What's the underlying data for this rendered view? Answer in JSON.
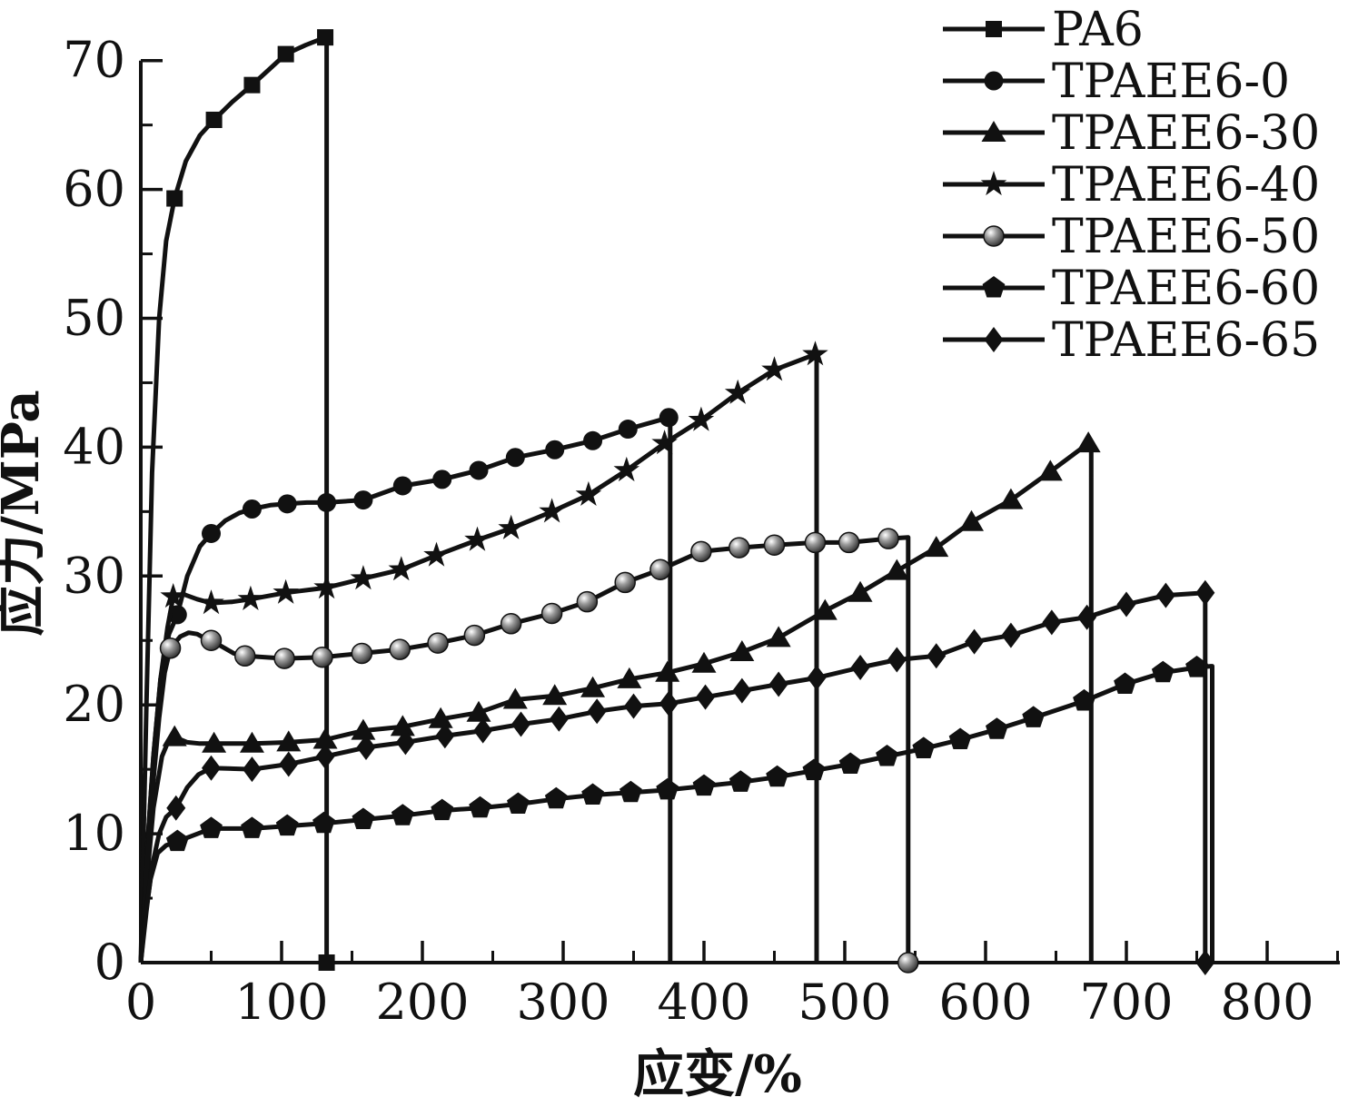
{
  "figure": {
    "background": "#ffffff",
    "ink_color": "#111111"
  },
  "chart_data": {
    "type": "line",
    "title": "",
    "xlabel": "应变/%",
    "ylabel": "应力/MPa",
    "xlim": [
      0,
      850
    ],
    "ylim": [
      0,
      70
    ],
    "x_major_ticks": [
      0,
      100,
      200,
      300,
      400,
      500,
      600,
      700,
      800
    ],
    "x_minor_step": 50,
    "y_major_ticks": [
      0,
      10,
      20,
      30,
      40,
      50,
      60,
      70
    ],
    "y_minor_step": 5,
    "grid": "off",
    "legend_position": "top-right",
    "legend": [
      "PA6",
      "TPAEE6-0",
      "TPAEE6-30",
      "TPAEE6-40",
      "TPAEE6-50",
      "TPAEE6-60",
      "TPAEE6-65"
    ],
    "series": [
      {
        "name": "PA6",
        "marker": "square",
        "break_strain": 132,
        "base_marker": true,
        "points": [
          [
            0,
            0,
            0
          ],
          [
            4,
            20,
            0
          ],
          [
            8,
            38,
            0
          ],
          [
            13,
            50,
            0
          ],
          [
            18,
            56,
            0
          ],
          [
            24,
            59.3,
            1
          ],
          [
            32,
            62.2,
            0
          ],
          [
            42,
            64.2,
            0
          ],
          [
            52,
            65.4,
            1
          ],
          [
            65,
            66.8,
            0
          ],
          [
            79,
            68.1,
            1
          ],
          [
            91,
            69.3,
            0
          ],
          [
            103,
            70.5,
            1
          ],
          [
            117,
            71.2,
            0
          ],
          [
            131,
            71.8,
            1
          ]
        ]
      },
      {
        "name": "TPAEE6-0",
        "marker": "circle",
        "break_strain": 376,
        "base_marker": false,
        "points": [
          [
            0,
            0,
            0
          ],
          [
            4,
            8,
            0
          ],
          [
            9,
            16,
            0
          ],
          [
            14,
            22,
            0
          ],
          [
            20,
            25.5,
            0
          ],
          [
            26,
            27,
            1
          ],
          [
            33,
            30,
            0
          ],
          [
            42,
            32.3,
            0
          ],
          [
            50,
            33.3,
            1
          ],
          [
            60,
            34.3,
            0
          ],
          [
            70,
            34.9,
            0
          ],
          [
            79,
            35.2,
            1
          ],
          [
            92,
            35.5,
            0
          ],
          [
            104,
            35.6,
            1
          ],
          [
            118,
            35.7,
            0
          ],
          [
            132,
            35.7,
            1
          ],
          [
            158,
            35.9,
            1
          ],
          [
            186,
            37,
            1
          ],
          [
            214,
            37.5,
            1
          ],
          [
            240,
            38.2,
            1
          ],
          [
            266,
            39.2,
            1
          ],
          [
            294,
            39.8,
            1
          ],
          [
            321,
            40.5,
            1
          ],
          [
            346,
            41.4,
            1
          ],
          [
            375,
            42.3,
            1
          ]
        ]
      },
      {
        "name": "TPAEE6-30",
        "marker": "triangle",
        "break_strain": 675,
        "base_marker": false,
        "points": [
          [
            0,
            0,
            0
          ],
          [
            4,
            6,
            0
          ],
          [
            9,
            12,
            0
          ],
          [
            15,
            16,
            0
          ],
          [
            20,
            17.3,
            0
          ],
          [
            24,
            17.5,
            1
          ],
          [
            33,
            17.1,
            0
          ],
          [
            42,
            17,
            0
          ],
          [
            52,
            17,
            1
          ],
          [
            65,
            17,
            0
          ],
          [
            79,
            17,
            1
          ],
          [
            92,
            17.05,
            0
          ],
          [
            105,
            17.1,
            1
          ],
          [
            131,
            17.3,
            1
          ],
          [
            158,
            18,
            1
          ],
          [
            186,
            18.3,
            1
          ],
          [
            213,
            18.9,
            1
          ],
          [
            240,
            19.4,
            1
          ],
          [
            266,
            20.4,
            1
          ],
          [
            294,
            20.7,
            1
          ],
          [
            321,
            21.3,
            1
          ],
          [
            347,
            22,
            1
          ],
          [
            374,
            22.5,
            1
          ],
          [
            400,
            23.2,
            1
          ],
          [
            427,
            24.1,
            1
          ],
          [
            453,
            25.2,
            1
          ],
          [
            486,
            27.3,
            1
          ],
          [
            511,
            28.7,
            1
          ],
          [
            537,
            30.4,
            1
          ],
          [
            565,
            32.2,
            1
          ],
          [
            590,
            34.2,
            1
          ],
          [
            618,
            35.9,
            1
          ],
          [
            646,
            38.1,
            1
          ],
          [
            673,
            40.3,
            1
          ]
        ]
      },
      {
        "name": "TPAEE6-40",
        "marker": "star",
        "break_strain": 480,
        "base_marker": false,
        "points": [
          [
            0,
            0,
            0
          ],
          [
            4,
            8,
            0
          ],
          [
            9,
            16,
            0
          ],
          [
            14,
            22,
            0
          ],
          [
            19,
            26,
            0
          ],
          [
            23,
            28.4,
            1
          ],
          [
            30,
            28.6,
            0
          ],
          [
            40,
            28.2,
            0
          ],
          [
            50,
            27.9,
            1
          ],
          [
            65,
            28,
            0
          ],
          [
            78,
            28.2,
            1
          ],
          [
            103,
            28.7,
            1
          ],
          [
            132,
            29.1,
            1
          ],
          [
            158,
            29.8,
            1
          ],
          [
            185,
            30.5,
            1
          ],
          [
            210,
            31.6,
            1
          ],
          [
            239,
            32.8,
            1
          ],
          [
            263,
            33.7,
            1
          ],
          [
            292,
            35,
            1
          ],
          [
            318,
            36.3,
            1
          ],
          [
            345,
            38.2,
            1
          ],
          [
            372,
            40.3,
            1
          ],
          [
            398,
            42.1,
            1
          ],
          [
            424,
            44.2,
            1
          ],
          [
            450,
            46,
            1
          ],
          [
            479,
            47.2,
            1
          ]
        ]
      },
      {
        "name": "TPAEE6-50",
        "marker": "sphere",
        "break_strain": 545,
        "base_marker": true,
        "points": [
          [
            0,
            0,
            0
          ],
          [
            4,
            7,
            0
          ],
          [
            8,
            13,
            0
          ],
          [
            13,
            19,
            0
          ],
          [
            17,
            22.5,
            0
          ],
          [
            21,
            24.4,
            1
          ],
          [
            28,
            25.3,
            0
          ],
          [
            34,
            25.6,
            0
          ],
          [
            40,
            25.5,
            0
          ],
          [
            45,
            25.2,
            0
          ],
          [
            50,
            25,
            1
          ],
          [
            58,
            24.5,
            0
          ],
          [
            66,
            24,
            0
          ],
          [
            74,
            23.8,
            1
          ],
          [
            102,
            23.6,
            1
          ],
          [
            129,
            23.7,
            1
          ],
          [
            157,
            24,
            1
          ],
          [
            184,
            24.3,
            1
          ],
          [
            211,
            24.8,
            1
          ],
          [
            237,
            25.4,
            1
          ],
          [
            263,
            26.3,
            1
          ],
          [
            292,
            27.1,
            1
          ],
          [
            317,
            28,
            1
          ],
          [
            344,
            29.5,
            1
          ],
          [
            369,
            30.5,
            1
          ],
          [
            398,
            31.9,
            1
          ],
          [
            425,
            32.2,
            1
          ],
          [
            450,
            32.4,
            1
          ],
          [
            479,
            32.6,
            1
          ],
          [
            503,
            32.6,
            1
          ],
          [
            531,
            32.9,
            1
          ],
          [
            545,
            33,
            0
          ]
        ]
      },
      {
        "name": "TPAEE6-60",
        "marker": "pentagon",
        "break_strain": 761,
        "base_marker": false,
        "points": [
          [
            0,
            0,
            0
          ],
          [
            3,
            3.5,
            0
          ],
          [
            7,
            6.5,
            0
          ],
          [
            12,
            8.5,
            0
          ],
          [
            18,
            9.1,
            0
          ],
          [
            26,
            9.4,
            1
          ],
          [
            50,
            10.4,
            1
          ],
          [
            79,
            10.4,
            1
          ],
          [
            104,
            10.6,
            1
          ],
          [
            130,
            10.8,
            1
          ],
          [
            158,
            11.1,
            1
          ],
          [
            186,
            11.4,
            1
          ],
          [
            214,
            11.8,
            1
          ],
          [
            241,
            12,
            1
          ],
          [
            268,
            12.3,
            1
          ],
          [
            295,
            12.7,
            1
          ],
          [
            321,
            13,
            1
          ],
          [
            348,
            13.2,
            1
          ],
          [
            374,
            13.4,
            1
          ],
          [
            400,
            13.7,
            1
          ],
          [
            426,
            14,
            1
          ],
          [
            452,
            14.4,
            1
          ],
          [
            478,
            14.9,
            1
          ],
          [
            504,
            15.4,
            1
          ],
          [
            530,
            16,
            1
          ],
          [
            556,
            16.6,
            1
          ],
          [
            582,
            17.3,
            1
          ],
          [
            608,
            18.1,
            1
          ],
          [
            634,
            19,
            1
          ],
          [
            670,
            20.3,
            1
          ],
          [
            699,
            21.6,
            1
          ],
          [
            726,
            22.5,
            1
          ],
          [
            750,
            22.9,
            1
          ],
          [
            760,
            23,
            0
          ]
        ]
      },
      {
        "name": "TPAEE6-65",
        "marker": "diamond",
        "break_strain": 756,
        "base_marker": true,
        "points": [
          [
            0,
            0,
            0
          ],
          [
            4,
            4,
            0
          ],
          [
            8,
            7.5,
            0
          ],
          [
            13,
            10,
            0
          ],
          [
            18,
            11.3,
            0
          ],
          [
            25,
            12,
            1
          ],
          [
            33,
            13.6,
            0
          ],
          [
            41,
            14.6,
            0
          ],
          [
            50,
            15.1,
            1
          ],
          [
            79,
            15,
            1
          ],
          [
            105,
            15.4,
            1
          ],
          [
            131,
            16,
            1
          ],
          [
            160,
            16.7,
            1
          ],
          [
            188,
            17.1,
            1
          ],
          [
            216,
            17.6,
            1
          ],
          [
            243,
            18,
            1
          ],
          [
            270,
            18.5,
            1
          ],
          [
            297,
            18.9,
            1
          ],
          [
            324,
            19.5,
            1
          ],
          [
            350,
            19.9,
            1
          ],
          [
            375,
            20.1,
            1
          ],
          [
            401,
            20.6,
            1
          ],
          [
            427,
            21.1,
            1
          ],
          [
            453,
            21.6,
            1
          ],
          [
            480,
            22.1,
            1
          ],
          [
            511,
            22.9,
            1
          ],
          [
            537,
            23.5,
            1
          ],
          [
            565,
            23.8,
            1
          ],
          [
            592,
            24.9,
            1
          ],
          [
            618,
            25.4,
            1
          ],
          [
            647,
            26.4,
            1
          ],
          [
            672,
            26.8,
            1
          ],
          [
            700,
            27.8,
            1
          ],
          [
            728,
            28.5,
            1
          ],
          [
            756,
            28.7,
            1
          ]
        ]
      }
    ]
  }
}
